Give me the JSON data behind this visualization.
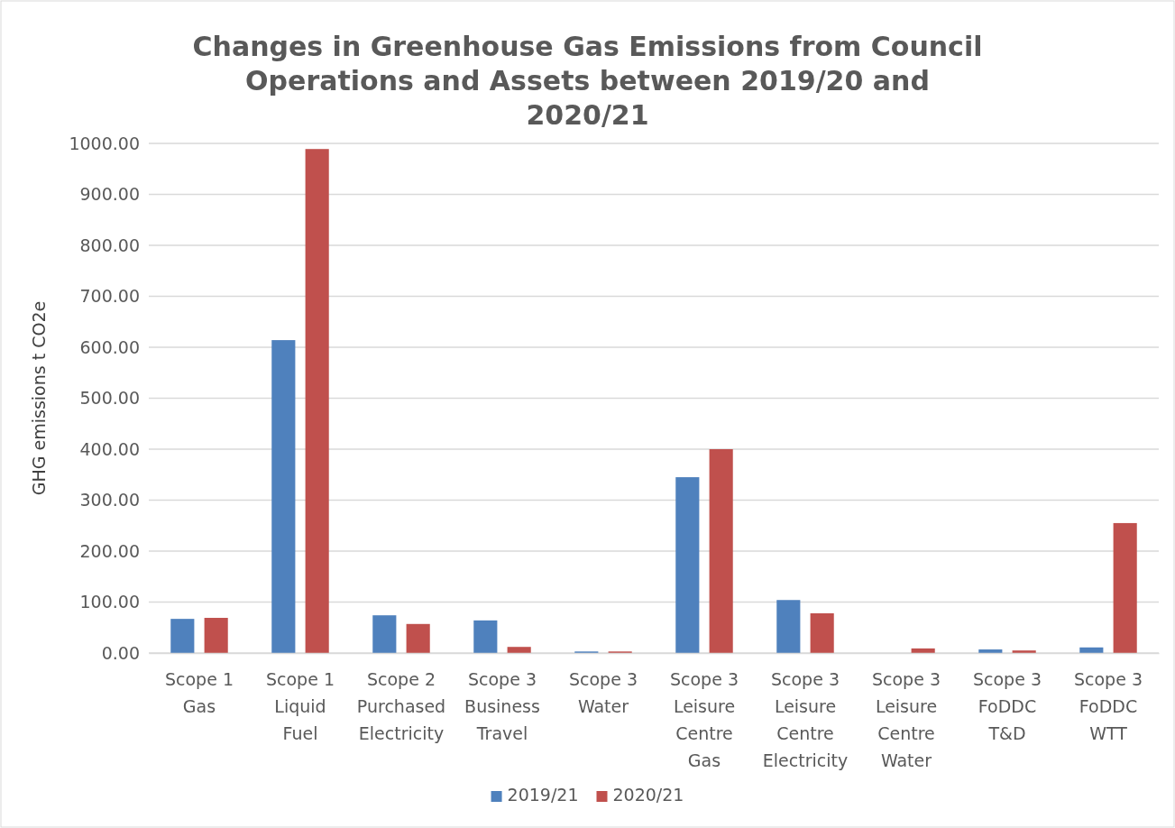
{
  "chart_data": {
    "type": "bar",
    "title": "Changes in Greenhouse Gas Emissions from Council Operations and Assets between 2019/20 and 2020/21",
    "ylabel": "GHG emissions t CO2e",
    "categories": [
      "Scope 1 Gas",
      "Scope 1 Liquid Fuel",
      "Scope 2 Purchased Electricity",
      "Scope 3 Business Travel",
      "Scope 3 Water",
      "Scope 3 Leisure Centre Gas",
      "Scope 3 Leisure Centre Electricity",
      "Scope 3 Leisure Centre Water",
      "Scope 3 FoDDC T&D",
      "Scope 3 FoDDC WTT"
    ],
    "series": [
      {
        "name": "2019/21",
        "color": "#4f81bd",
        "values": [
          67,
          614,
          74,
          64,
          3,
          345,
          104,
          0,
          7,
          11
        ]
      },
      {
        "name": "2020/21",
        "color": "#c0504d",
        "values": [
          69,
          989,
          57,
          12,
          3,
          400,
          78,
          9,
          5,
          255
        ]
      }
    ],
    "ylim": [
      0,
      1000
    ],
    "yticks": [
      {
        "value": 0,
        "label": "0.00"
      },
      {
        "value": 100,
        "label": "100.00"
      },
      {
        "value": 200,
        "label": "200.00"
      },
      {
        "value": 300,
        "label": "300.00"
      },
      {
        "value": 400,
        "label": "400.00"
      },
      {
        "value": 500,
        "label": "500.00"
      },
      {
        "value": 600,
        "label": "600.00"
      },
      {
        "value": 700,
        "label": "700.00"
      },
      {
        "value": 800,
        "label": "800.00"
      },
      {
        "value": 900,
        "label": "900.00"
      },
      {
        "value": 1000,
        "label": "1000.00"
      }
    ],
    "grid": "y",
    "legend": "bottom"
  }
}
